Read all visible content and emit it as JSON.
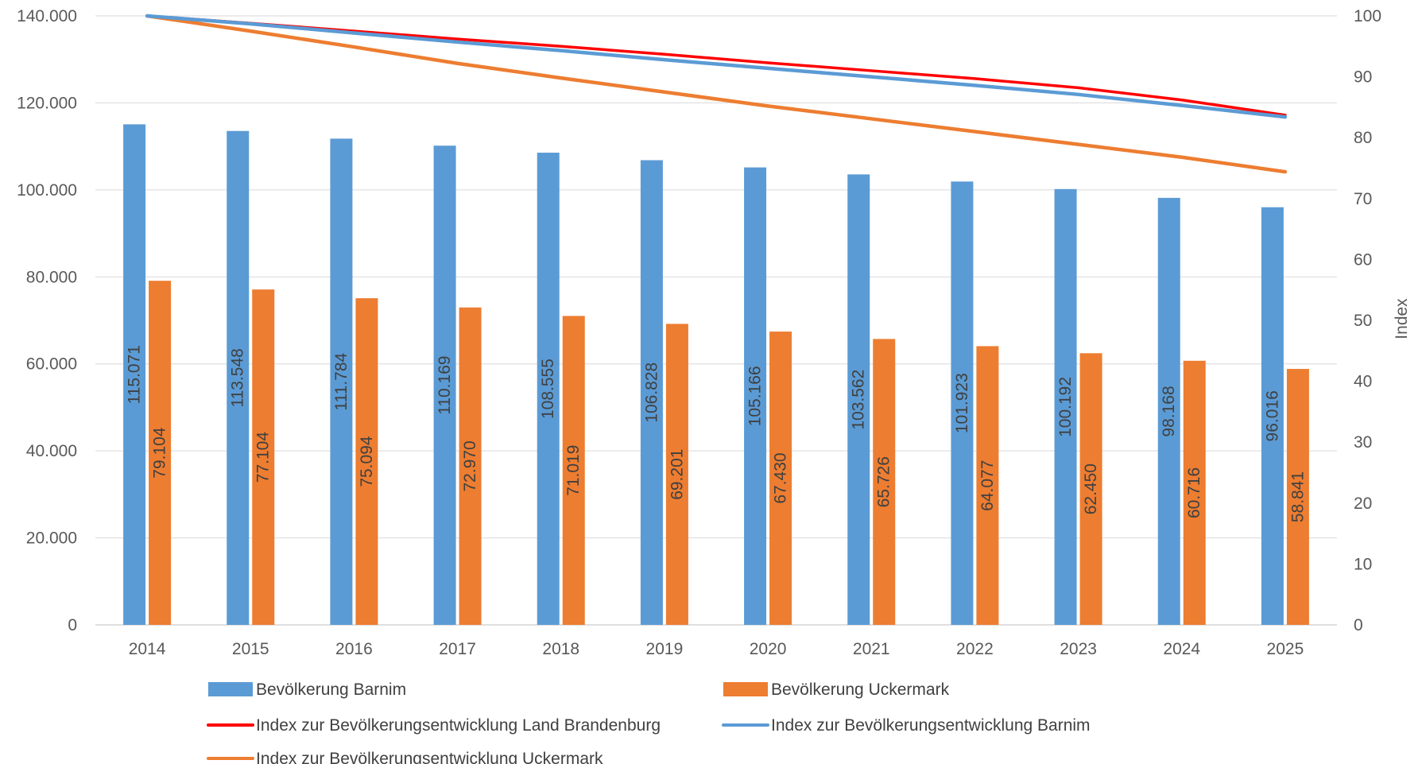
{
  "chart_data": {
    "type": "bar",
    "categories": [
      "2014",
      "2015",
      "2016",
      "2017",
      "2018",
      "2019",
      "2020",
      "2021",
      "2022",
      "2023",
      "2024",
      "2025"
    ],
    "series": [
      {
        "name": "Bevölkerung Barnim",
        "kind": "bar",
        "axis": "left",
        "color": "#5b9bd5",
        "values": [
          115071,
          113548,
          111784,
          110169,
          108555,
          106828,
          105166,
          103562,
          101923,
          100192,
          98168,
          96016
        ],
        "labels": [
          "115.071",
          "113.548",
          "111.784",
          "110.169",
          "108.555",
          "106.828",
          "105.166",
          "103.562",
          "101.923",
          "100.192",
          "98.168",
          "96.016"
        ]
      },
      {
        "name": "Bevölkerung Uckermark",
        "kind": "bar",
        "axis": "left",
        "color": "#ed7d31",
        "values": [
          79104,
          77104,
          75094,
          72970,
          71019,
          69201,
          67430,
          65726,
          64077,
          62450,
          60716,
          58841
        ],
        "labels": [
          "79.104",
          "77.104",
          "75.094",
          "72.970",
          "71.019",
          "69.201",
          "67.430",
          "65.726",
          "64.077",
          "62.450",
          "60.716",
          "58.841"
        ]
      },
      {
        "name": "Index zur Bevölkerungsentwicklung Land Brandenburg",
        "kind": "line",
        "axis": "right",
        "color": "#ff0000",
        "values": [
          100,
          98.8,
          97.5,
          96.2,
          95.0,
          93.7,
          92.3,
          91.0,
          89.7,
          88.2,
          86.2,
          83.7
        ]
      },
      {
        "name": "Index zur Bevölkerungsentwicklung Barnim",
        "kind": "line",
        "axis": "right",
        "color": "#5b9bd5",
        "values": [
          100,
          98.7,
          97.2,
          95.7,
          94.3,
          92.8,
          91.4,
          90.0,
          88.6,
          87.1,
          85.3,
          83.4
        ]
      },
      {
        "name": "Index zur Bevölkerungsentwicklung Uckermark",
        "kind": "line",
        "axis": "right",
        "color": "#ed7d31",
        "values": [
          100,
          97.5,
          94.9,
          92.2,
          89.8,
          87.5,
          85.2,
          83.1,
          81.0,
          78.9,
          76.8,
          74.4
        ]
      }
    ],
    "left_axis": {
      "ylim": [
        0,
        140000
      ],
      "ticks": [
        0,
        20000,
        40000,
        60000,
        80000,
        100000,
        120000,
        140000
      ],
      "tick_labels": [
        "0",
        "20.000",
        "40.000",
        "60.000",
        "80.000",
        "100.000",
        "120.000",
        "140.000"
      ],
      "label": ""
    },
    "right_axis": {
      "ylim": [
        0,
        100
      ],
      "ticks": [
        0,
        10,
        20,
        30,
        40,
        50,
        60,
        70,
        80,
        90,
        100
      ],
      "tick_labels": [
        "0",
        "10",
        "20",
        "30",
        "40",
        "50",
        "60",
        "70",
        "80",
        "90",
        "100"
      ],
      "label": "Index"
    },
    "grid": true,
    "legend_position": "bottom"
  }
}
